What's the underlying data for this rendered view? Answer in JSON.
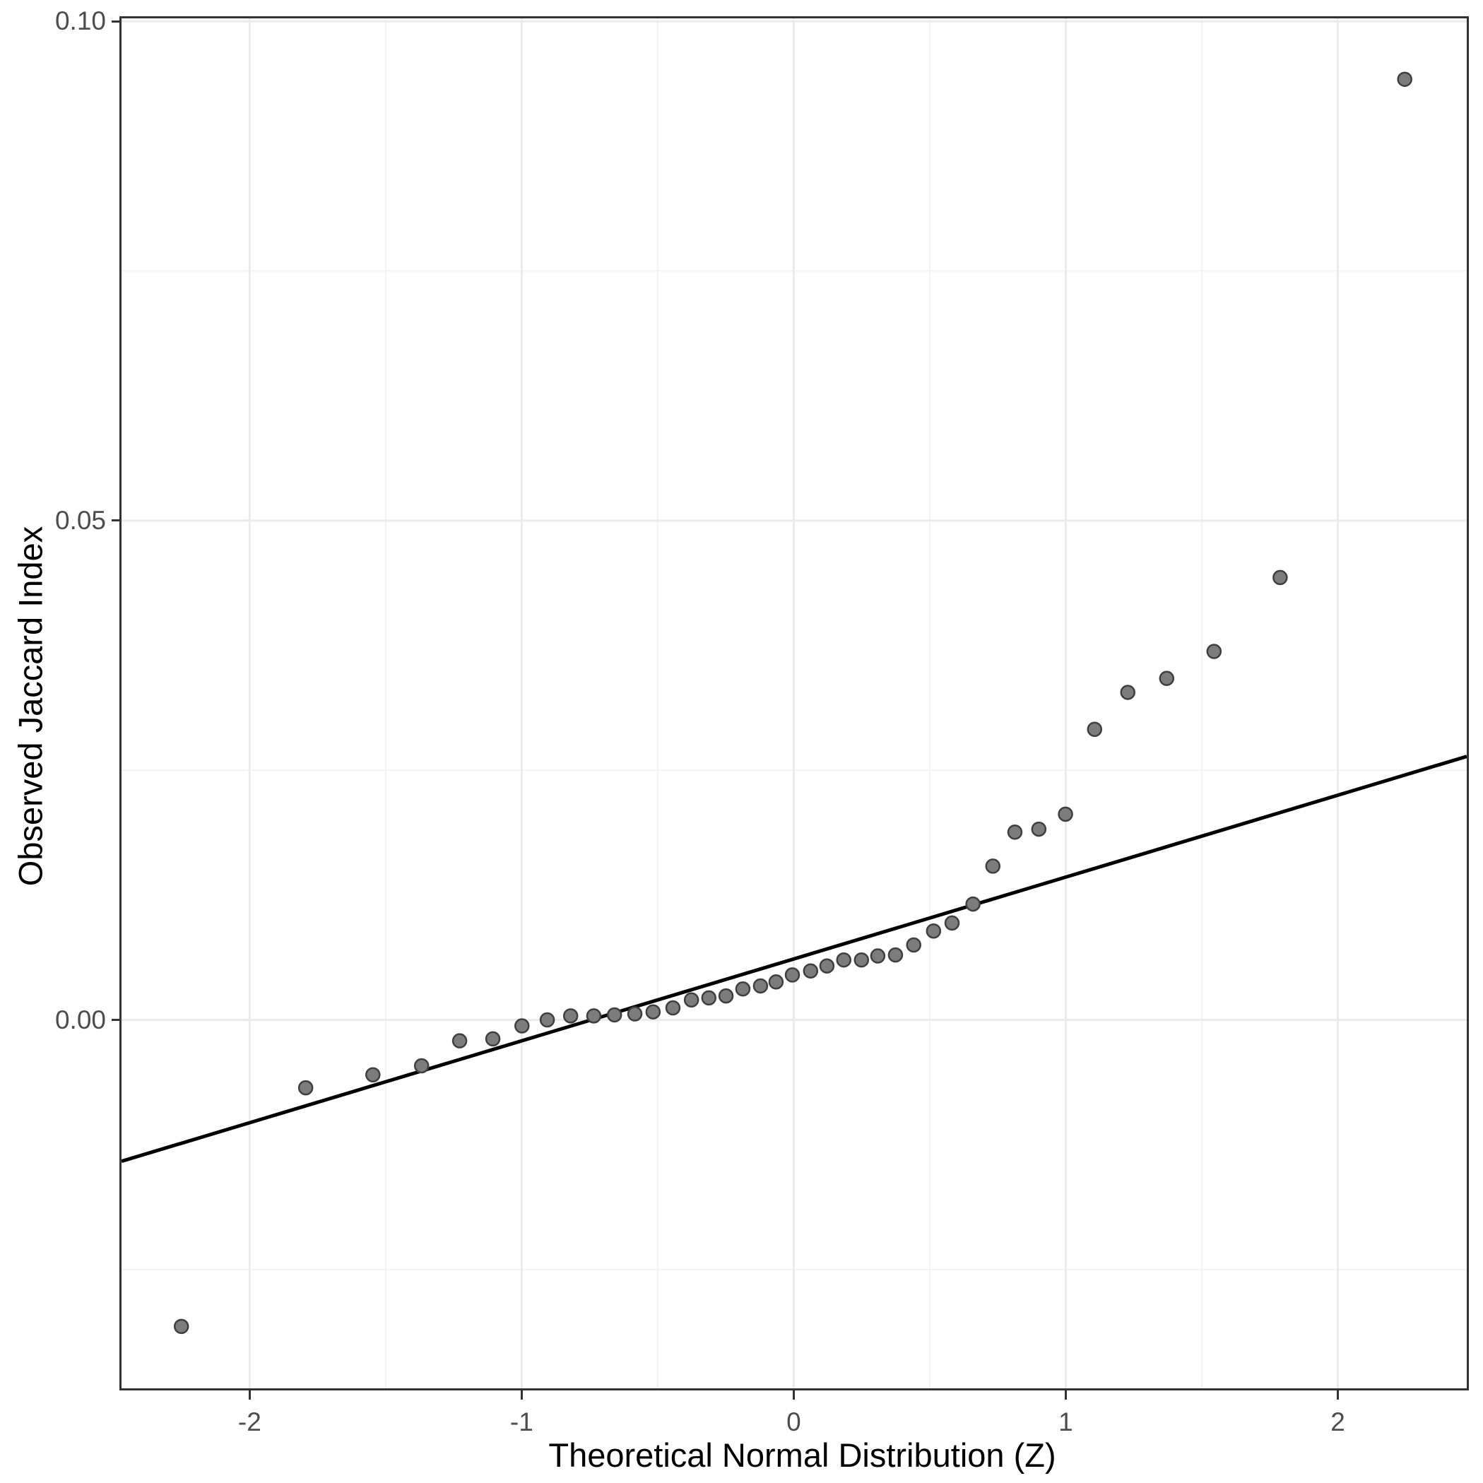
{
  "chart_data": {
    "type": "scatter",
    "title": "",
    "xlabel": "Theoretical Normal Distribution (Z)",
    "ylabel": "Observed Jaccard Index",
    "xlim": [
      -2.471,
      2.474
    ],
    "ylim": [
      -0.0369,
      0.1003
    ],
    "grid": "on",
    "legend": "none",
    "x_tick_values": [
      -2,
      -1,
      0,
      1,
      2
    ],
    "x_tick_labels": [
      "-2",
      "-1",
      "0",
      "1",
      "2"
    ],
    "x_minor_ticks": [
      -1.5,
      -0.5,
      0.5,
      1.5
    ],
    "y_tick_values": [
      0.0,
      0.05,
      0.1
    ],
    "y_tick_labels": [
      "0.00",
      "0.05",
      "0.10"
    ],
    "y_minor_ticks": [
      -0.025,
      0.025,
      0.075
    ],
    "points": [
      [
        -2.251,
        -0.0307
      ],
      [
        -1.794,
        -0.0068
      ],
      [
        -1.547,
        -0.0055
      ],
      [
        -1.368,
        -0.0046
      ],
      [
        -1.228,
        -0.0021
      ],
      [
        -1.106,
        -0.0019
      ],
      [
        -0.999,
        -0.0006
      ],
      [
        -0.906,
        0.0
      ],
      [
        -0.82,
        0.0004
      ],
      [
        -0.735,
        0.0004
      ],
      [
        -0.659,
        0.0005
      ],
      [
        -0.584,
        0.0006
      ],
      [
        -0.517,
        0.0008
      ],
      [
        -0.444,
        0.0012
      ],
      [
        -0.376,
        0.002
      ],
      [
        -0.312,
        0.0022
      ],
      [
        -0.249,
        0.0024
      ],
      [
        -0.187,
        0.0031
      ],
      [
        -0.122,
        0.0034
      ],
      [
        -0.065,
        0.0038
      ],
      [
        -0.005,
        0.0045
      ],
      [
        0.062,
        0.0049
      ],
      [
        0.122,
        0.0054
      ],
      [
        0.184,
        0.006
      ],
      [
        0.249,
        0.006
      ],
      [
        0.309,
        0.0064
      ],
      [
        0.374,
        0.0065
      ],
      [
        0.441,
        0.0075
      ],
      [
        0.514,
        0.0089
      ],
      [
        0.582,
        0.0097
      ],
      [
        0.659,
        0.0116
      ],
      [
        0.732,
        0.0154
      ],
      [
        0.813,
        0.0188
      ],
      [
        0.901,
        0.0191
      ],
      [
        0.999,
        0.0206
      ],
      [
        1.106,
        0.0291
      ],
      [
        1.228,
        0.0328
      ],
      [
        1.371,
        0.0342
      ],
      [
        1.545,
        0.0369
      ],
      [
        1.788,
        0.0443
      ],
      [
        2.246,
        0.0942
      ]
    ],
    "reference_line": {
      "intercept": 0.0061,
      "slope": 0.0082
    },
    "style": {
      "point_fill": "#7c7c7c",
      "point_stroke": "#3f3f3f",
      "reference_line_color": "#000000",
      "grid_major_color": "#ebebeb",
      "grid_minor_color": "#f3f3f3",
      "panel_border_color": "#333333",
      "tick_mark_color": "#333333",
      "tick_label_color": "#4d4d4d",
      "axis_title_color": "#000000",
      "background": "#ffffff"
    }
  }
}
